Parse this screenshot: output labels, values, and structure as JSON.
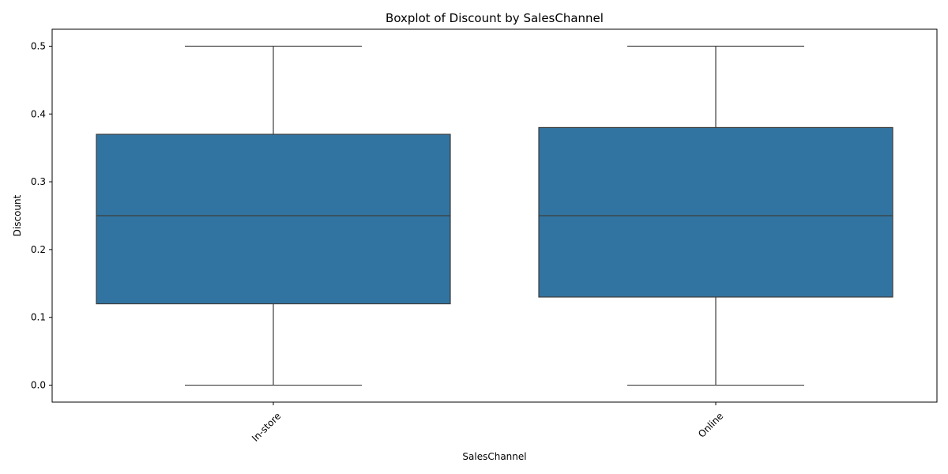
{
  "chart_data": {
    "type": "boxplot",
    "title": "Boxplot of Discount by SalesChannel",
    "xlabel": "SalesChannel",
    "ylabel": "Discount",
    "ylim": [
      -0.025,
      0.525
    ],
    "yticks": [
      0.0,
      0.1,
      0.2,
      0.3,
      0.4,
      0.5
    ],
    "ytick_labels": [
      "0.0",
      "0.1",
      "0.2",
      "0.3",
      "0.4",
      "0.5"
    ],
    "categories": [
      "In-store",
      "Online"
    ],
    "boxes": [
      {
        "category": "In-store",
        "whisker_low": 0.0,
        "q1": 0.12,
        "median": 0.25,
        "q3": 0.37,
        "whisker_high": 0.5
      },
      {
        "category": "Online",
        "whisker_low": 0.0,
        "q1": 0.13,
        "median": 0.25,
        "q3": 0.38,
        "whisker_high": 0.5
      }
    ],
    "grid": false,
    "colors": {
      "box_fill": "#3274a1",
      "box_edge": "#3d3d3d"
    }
  }
}
